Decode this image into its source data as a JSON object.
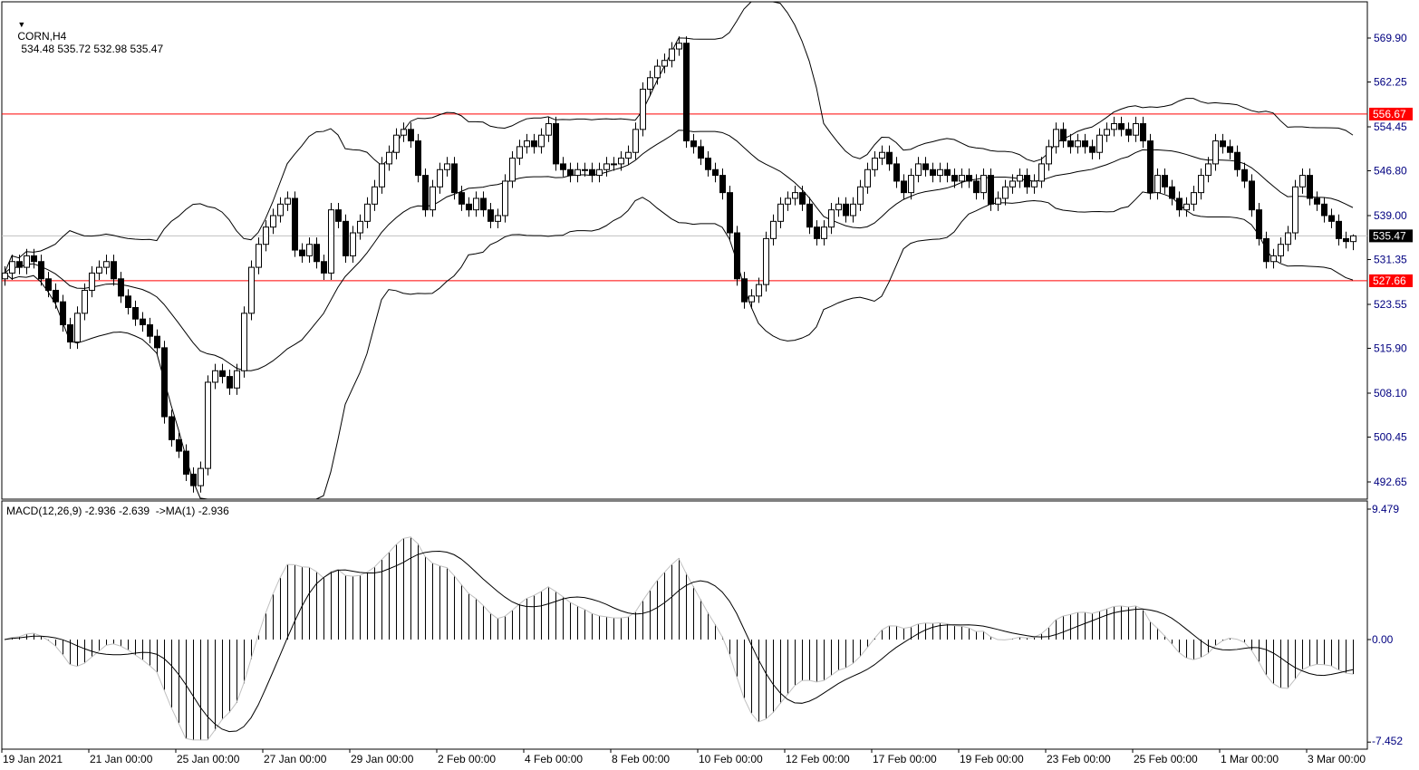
{
  "header": {
    "symbol": "CORN,H4",
    "ohlc_text": "534.48 535.72 532.98 535.47",
    "macd_label": "MACD(12,26,9) -2.936 -2.639  ->MA(1) -2.936"
  },
  "chart_data": {
    "type": "candlestick",
    "symbol": "CORN",
    "timeframe": "H4",
    "ylim": [
      489.5,
      573.5
    ],
    "y_ticks": [
      "569.90",
      "562.25",
      "554.45",
      "546.80",
      "539.00",
      "531.35",
      "523.55",
      "515.90",
      "508.10",
      "500.45",
      "492.65"
    ],
    "x_ticks": [
      "19 Jan 2021",
      "21 Jan 00:00",
      "25 Jan 00:00",
      "27 Jan 00:00",
      "29 Jan 00:00",
      "2 Feb 00:00",
      "4 Feb 00:00",
      "8 Feb 00:00",
      "10 Feb 00:00",
      "12 Feb 00:00",
      "17 Feb 00:00",
      "19 Feb 00:00",
      "23 Feb 00:00",
      "25 Feb 00:00",
      "1 Mar 00:00",
      "3 Mar 00:00"
    ],
    "last_bar": {
      "open": 534.48,
      "high": 535.72,
      "low": 532.98,
      "close": 535.47
    },
    "close": [
      529,
      531,
      530,
      532,
      531,
      528,
      526,
      524,
      520,
      517,
      522,
      526,
      529,
      530,
      531,
      528,
      525,
      523,
      521,
      520,
      518,
      516,
      504,
      500,
      498,
      494,
      492,
      495,
      510,
      512,
      511,
      509,
      512,
      522,
      530,
      534,
      537,
      539,
      541,
      542,
      533,
      532,
      534,
      531,
      529,
      540,
      538,
      532,
      536,
      538,
      541,
      544,
      548,
      550,
      553,
      554,
      552,
      546,
      540,
      544,
      547,
      548,
      543,
      541,
      540,
      542,
      540,
      538,
      539,
      545,
      549,
      551,
      552,
      551,
      553,
      555,
      548,
      547,
      546,
      547,
      547,
      546,
      547,
      548,
      548,
      549,
      550,
      554,
      561,
      563,
      565,
      566,
      568,
      569,
      552,
      551,
      549,
      547,
      546,
      543,
      536,
      528,
      524,
      525,
      527,
      535,
      538,
      541,
      542,
      543,
      541,
      537,
      535,
      537,
      540,
      541,
      539,
      541,
      544,
      547,
      549,
      550,
      548,
      545,
      543,
      546,
      548,
      547,
      546,
      547,
      546,
      545,
      546,
      545,
      543,
      546,
      541,
      542,
      544,
      545,
      546,
      544,
      545,
      548,
      551,
      554,
      552,
      551,
      552,
      551,
      550,
      553,
      554,
      555,
      554,
      553,
      555,
      552,
      543,
      546,
      544,
      542,
      540,
      541,
      543,
      546,
      548,
      552,
      551,
      550,
      547,
      545,
      540,
      535,
      531,
      532,
      534,
      536,
      544,
      546,
      542,
      541,
      539,
      538,
      535,
      534.48,
      535.47
    ],
    "horizontal_lines": [
      {
        "value": 556.67,
        "label": "556.67",
        "color": "#ff0000"
      },
      {
        "value": 527.66,
        "label": "527.66",
        "color": "#ff0000"
      }
    ],
    "current_price": {
      "value": 535.47,
      "label": "535.47",
      "color": "#000000"
    },
    "indicators": {
      "bollinger": {
        "period": 20,
        "deviation": 2
      },
      "macd": {
        "fast": 12,
        "slow": 26,
        "signal": 9,
        "ylim": [
          -7.452,
          9.479
        ],
        "y_ticks": [
          "9.479",
          "0.00",
          "-7.452"
        ]
      }
    },
    "grid": false
  }
}
